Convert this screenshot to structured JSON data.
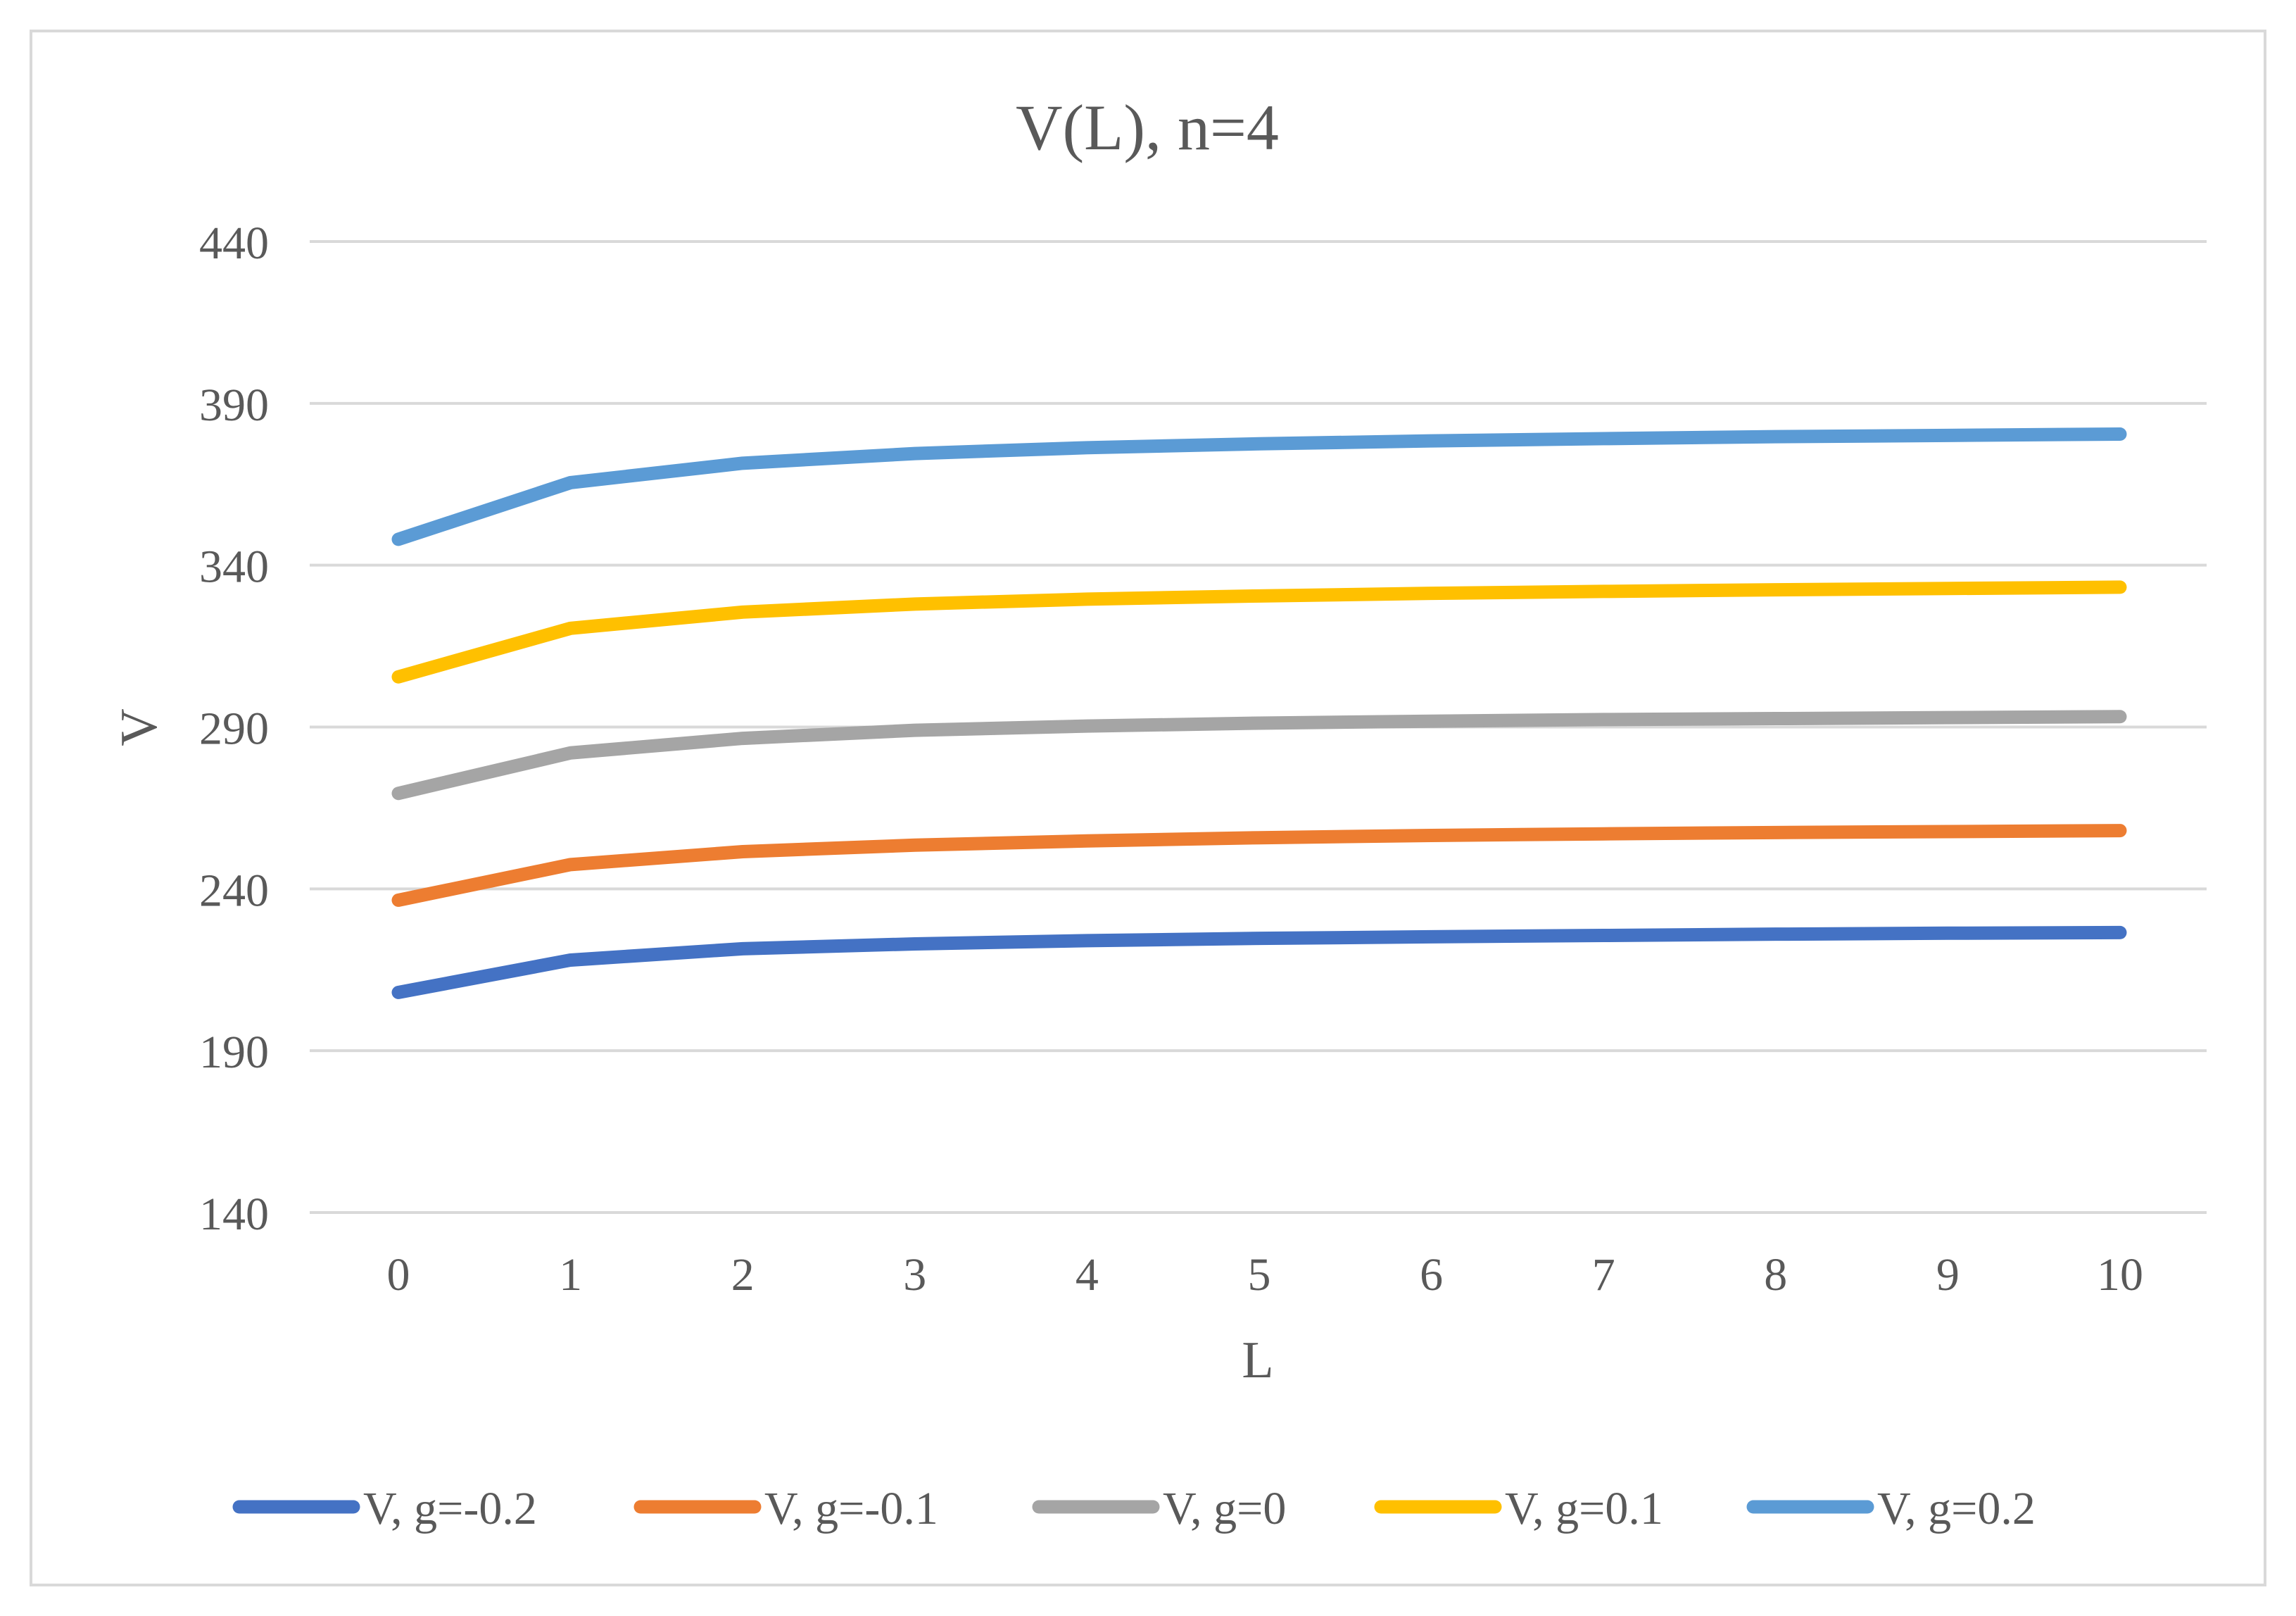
{
  "chart_data": {
    "type": "line",
    "title": "V(L), n=4",
    "xlabel": "L",
    "ylabel": "V",
    "categories": [
      "0",
      "1",
      "2",
      "3",
      "4",
      "5",
      "6",
      "7",
      "8",
      "9",
      "10"
    ],
    "x": [
      0,
      1,
      2,
      3,
      4,
      5,
      6,
      7,
      8,
      9,
      10
    ],
    "yticks": [
      140,
      190,
      240,
      290,
      340,
      390,
      440
    ],
    "ylim": [
      140,
      440
    ],
    "grid": true,
    "legend_position": "bottom",
    "series": [
      {
        "name": "V, g=-0.2",
        "color": "#4472C4",
        "values": [
          208,
          218,
          221.5,
          223,
          224,
          224.7,
          225.2,
          225.6,
          226,
          226.3,
          226.5
        ]
      },
      {
        "name": "V, g=-0.1",
        "color": "#ED7D31",
        "values": [
          236.5,
          247.5,
          251.5,
          253.5,
          254.8,
          255.8,
          256.5,
          257,
          257.4,
          257.7,
          258
        ]
      },
      {
        "name": "V, g=0",
        "color": "#A5A5A5",
        "values": [
          269.5,
          282,
          286.5,
          289,
          290.3,
          291.2,
          291.8,
          292.3,
          292.6,
          292.9,
          293.2
        ]
      },
      {
        "name": "V, g=0.1",
        "color": "#FFC000",
        "values": [
          305.5,
          320.5,
          325.5,
          328,
          329.5,
          330.5,
          331.3,
          331.9,
          332.4,
          332.8,
          333.2
        ]
      },
      {
        "name": "V, g=0.2",
        "color": "#5B9BD5",
        "values": [
          348,
          365.5,
          371.5,
          374.5,
          376.3,
          377.5,
          378.4,
          379.1,
          379.7,
          380.1,
          380.5
        ]
      }
    ]
  }
}
